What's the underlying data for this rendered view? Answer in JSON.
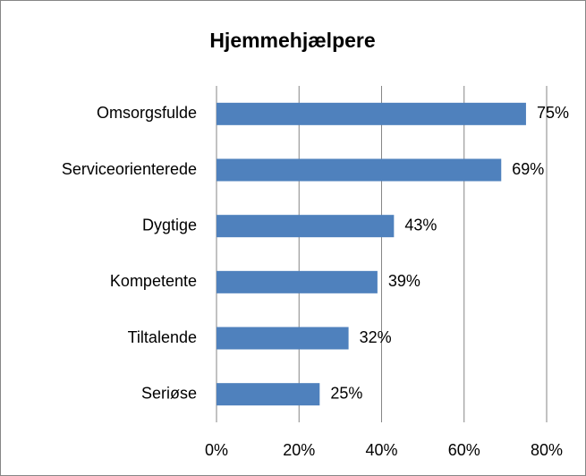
{
  "chart_data": {
    "type": "bar",
    "orientation": "horizontal",
    "title": "Hjemmehjælpere",
    "categories": [
      "Omsorgsfulde",
      "Serviceorienterede",
      "Dygtige",
      "Kompetente",
      "Tiltalende",
      "Seriøse"
    ],
    "values": [
      75,
      69,
      43,
      39,
      32,
      25
    ],
    "value_labels": [
      "75%",
      "69%",
      "43%",
      "39%",
      "32%",
      "25%"
    ],
    "color": "#4f81bd",
    "xlim": [
      0,
      80
    ],
    "xticks": [
      {
        "value": 0,
        "label": "0%"
      },
      {
        "value": 20,
        "label": "20%"
      },
      {
        "value": 40,
        "label": "40%"
      },
      {
        "value": 60,
        "label": "60%"
      },
      {
        "value": 80,
        "label": "80%"
      }
    ],
    "grid": true
  }
}
